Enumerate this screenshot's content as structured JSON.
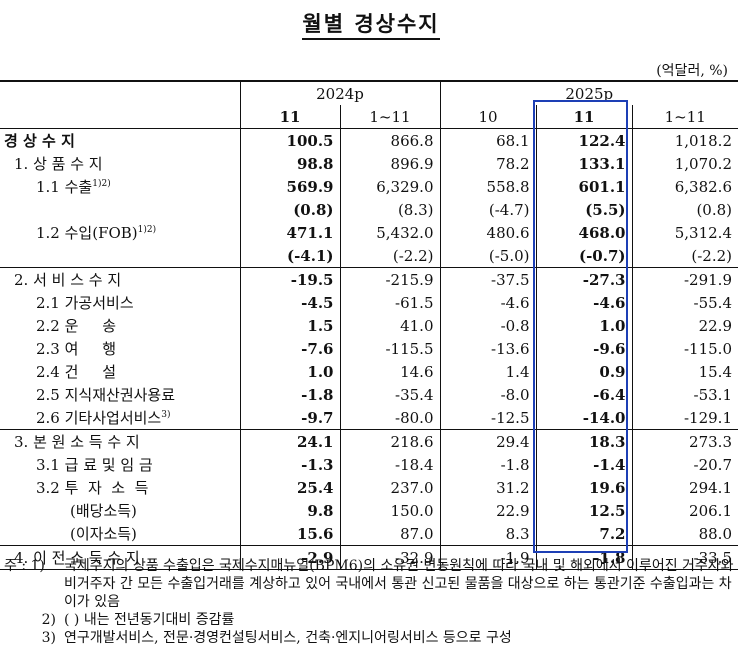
{
  "title": "월별 경상수지",
  "unit": "(억달러, %)",
  "header": {
    "year1": "2024p",
    "year2": "2025p",
    "cols": [
      "11",
      "1~11",
      "10",
      "11",
      "1~11"
    ]
  },
  "rows": [
    {
      "label": "경 상 수 지",
      "vals": [
        "100.5",
        "866.8",
        "68.1",
        "122.4",
        "1,018.2"
      ]
    },
    {
      "label": "1. 상 품 수 지",
      "vals": [
        "98.8",
        "896.9",
        "78.2",
        "133.1",
        "1,070.2"
      ]
    },
    {
      "label": "1.1 수출",
      "sup": "1)2)",
      "vals": [
        "569.9",
        "6,329.0",
        "558.8",
        "601.1",
        "6,382.6"
      ]
    },
    {
      "label": "",
      "vals": [
        "(0.8)",
        "(8.3)",
        "(-4.7)",
        "(5.5)",
        "(0.8)"
      ]
    },
    {
      "label": "1.2 수입(FOB)",
      "sup": "1)2)",
      "vals": [
        "471.1",
        "5,432.0",
        "480.6",
        "468.0",
        "5,312.4"
      ]
    },
    {
      "label": "",
      "vals": [
        "(-4.1)",
        "(-2.2)",
        "(-5.0)",
        "(-0.7)",
        "(-2.2)"
      ]
    },
    {
      "label": "2. 서 비 스 수 지",
      "vals": [
        "-19.5",
        "-215.9",
        "-37.5",
        "-27.3",
        "-291.9"
      ]
    },
    {
      "label": "2.1 가공서비스",
      "vals": [
        "-4.5",
        "-61.5",
        "-4.6",
        "-4.6",
        "-55.4"
      ]
    },
    {
      "label": "2.2 운     송",
      "vals": [
        "1.5",
        "41.0",
        "-0.8",
        "1.0",
        "22.9"
      ]
    },
    {
      "label": "2.3 여     행",
      "vals": [
        "-7.6",
        "-115.5",
        "-13.6",
        "-9.6",
        "-115.0"
      ]
    },
    {
      "label": "2.4 건     설",
      "vals": [
        "1.0",
        "14.6",
        "1.4",
        "0.9",
        "15.4"
      ]
    },
    {
      "label": "2.5 지식재산권사용료",
      "vals": [
        "-1.8",
        "-35.4",
        "-8.0",
        "-6.4",
        "-53.1"
      ]
    },
    {
      "label": "2.6 기타사업서비스",
      "sup": "3)",
      "vals": [
        "-9.7",
        "-80.0",
        "-12.5",
        "-14.0",
        "-129.1"
      ]
    },
    {
      "label": "3. 본 원 소 득 수 지",
      "vals": [
        "24.1",
        "218.6",
        "29.4",
        "18.3",
        "273.3"
      ]
    },
    {
      "label": "3.1 급 료 및 임 금",
      "vals": [
        "-1.3",
        "-18.4",
        "-1.8",
        "-1.4",
        "-20.7"
      ]
    },
    {
      "label": "3.2 투  자  소  득",
      "vals": [
        "25.4",
        "237.0",
        "31.2",
        "19.6",
        "294.1"
      ]
    },
    {
      "label": "(배당소득)",
      "vals": [
        "9.8",
        "150.0",
        "22.9",
        "12.5",
        "206.1"
      ]
    },
    {
      "label": "(이자소득)",
      "vals": [
        "15.6",
        "87.0",
        "8.3",
        "7.2",
        "88.0"
      ]
    },
    {
      "label": "4. 이 전 소 득 수 지",
      "vals": [
        "-2.9",
        "-32.9",
        "-1.9",
        "-1.8",
        "-33.5"
      ]
    }
  ],
  "notes": {
    "n1_key": "주 : 1)",
    "n1": "국제수지의 상품 수출입은 국제수지매뉴얼(BPM6)의 소유권 변동원칙에 따라 국내 및 해외에서 이루어진 거주자와 비거주자 간 모든 수출입거래를 계상하고 있어 국내에서 통관 신고된 물품을 대상으로 하는 통관기준 수출입과는 차이가 있음",
    "n2_key": "2)",
    "n2": "( ) 내는 전년동기대비 증감률",
    "n3_key": "3)",
    "n3": "연구개발서비스, 전문·경영컨설팅서비스, 건축·엔지니어링서비스 등으로 구성"
  }
}
